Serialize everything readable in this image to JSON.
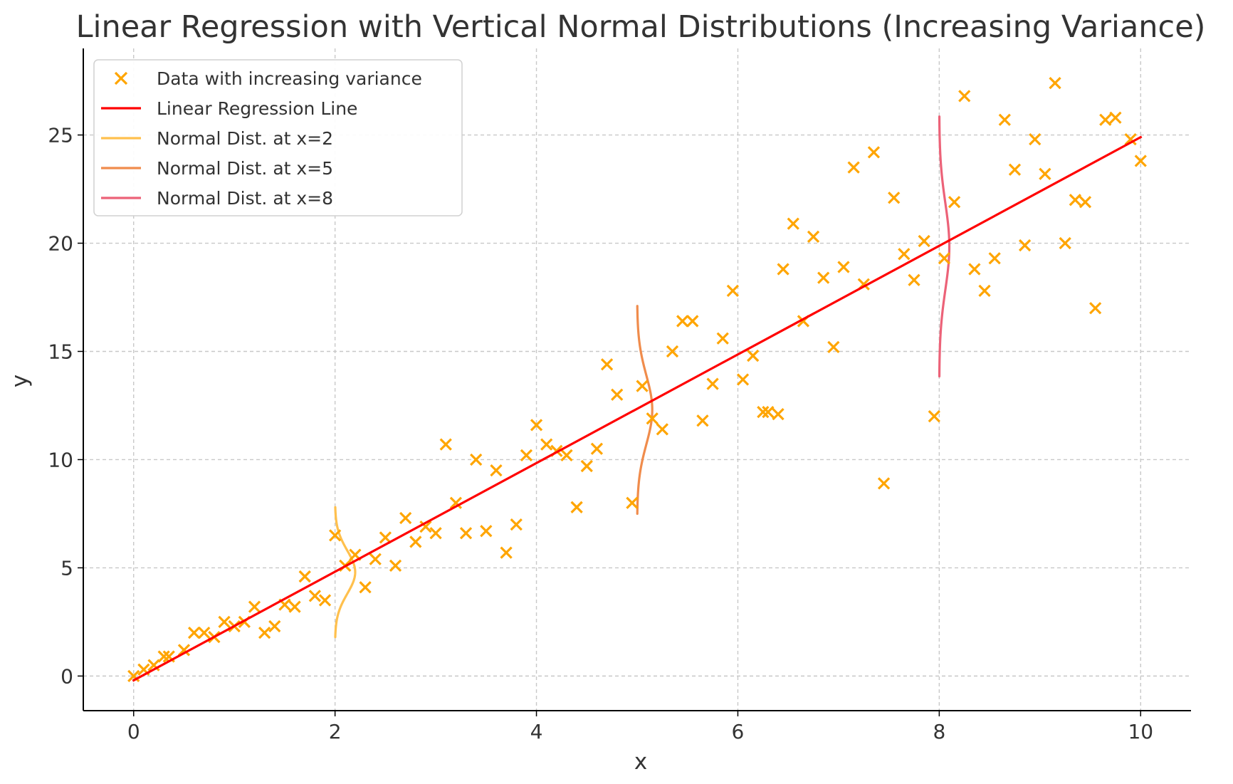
{
  "chart_data": {
    "type": "scatter",
    "title": "Linear Regression with Vertical Normal Distributions (Increasing Variance)",
    "xlabel": "x",
    "ylabel": "y",
    "xlim": [
      -0.5,
      10.5
    ],
    "ylim": [
      -1.6,
      29.0
    ],
    "xticks": [
      0,
      2,
      4,
      6,
      8,
      10
    ],
    "xtick_labels": [
      "0",
      "2",
      "4",
      "6",
      "8",
      "10"
    ],
    "yticks": [
      0,
      5,
      10,
      15,
      20,
      25
    ],
    "ytick_labels": [
      "0",
      "5",
      "10",
      "15",
      "20",
      "25"
    ],
    "grid": true,
    "legend_position": "top-left",
    "colors": {
      "scatter": "#FFA500",
      "regression": "#FF0000",
      "normal_x2": "#FFC04D",
      "normal_x5": "#F08C4C",
      "normal_x8": "#EC6278",
      "axes": "#000000",
      "grid": "#C8C8C8",
      "text": "#333333"
    },
    "legend": [
      {
        "label": "Data with increasing variance",
        "kind": "marker",
        "color": "#FFA500"
      },
      {
        "label": "Linear Regression Line",
        "kind": "line",
        "color": "#FF0000"
      },
      {
        "label": "Normal Dist. at x=2",
        "kind": "line",
        "color": "#FFC04D"
      },
      {
        "label": "Normal Dist. at x=5",
        "kind": "line",
        "color": "#F08C4C"
      },
      {
        "label": "Normal Dist. at x=8",
        "kind": "line",
        "color": "#EC6278"
      }
    ],
    "series": [
      {
        "name": "Data with increasing variance",
        "type": "scatter",
        "marker": "x",
        "points": [
          {
            "x": 0.0,
            "y": 0.0
          },
          {
            "x": 0.1,
            "y": 0.3
          },
          {
            "x": 0.2,
            "y": 0.5
          },
          {
            "x": 0.3,
            "y": 0.9
          },
          {
            "x": 0.35,
            "y": 0.9
          },
          {
            "x": 0.5,
            "y": 1.2
          },
          {
            "x": 0.6,
            "y": 2.0
          },
          {
            "x": 0.7,
            "y": 2.0
          },
          {
            "x": 0.8,
            "y": 1.8
          },
          {
            "x": 0.9,
            "y": 2.5
          },
          {
            "x": 1.0,
            "y": 2.3
          },
          {
            "x": 1.1,
            "y": 2.5
          },
          {
            "x": 1.2,
            "y": 3.2
          },
          {
            "x": 1.3,
            "y": 2.0
          },
          {
            "x": 1.4,
            "y": 2.3
          },
          {
            "x": 1.5,
            "y": 3.3
          },
          {
            "x": 1.6,
            "y": 3.2
          },
          {
            "x": 1.7,
            "y": 4.6
          },
          {
            "x": 1.8,
            "y": 3.7
          },
          {
            "x": 1.9,
            "y": 3.5
          },
          {
            "x": 2.0,
            "y": 6.5
          },
          {
            "x": 2.1,
            "y": 5.1
          },
          {
            "x": 2.2,
            "y": 5.6
          },
          {
            "x": 2.3,
            "y": 4.1
          },
          {
            "x": 2.4,
            "y": 5.4
          },
          {
            "x": 2.5,
            "y": 6.4
          },
          {
            "x": 2.6,
            "y": 5.1
          },
          {
            "x": 2.7,
            "y": 7.3
          },
          {
            "x": 2.8,
            "y": 6.2
          },
          {
            "x": 2.9,
            "y": 6.9
          },
          {
            "x": 3.0,
            "y": 6.6
          },
          {
            "x": 3.1,
            "y": 10.7
          },
          {
            "x": 3.2,
            "y": 8.0
          },
          {
            "x": 3.3,
            "y": 6.6
          },
          {
            "x": 3.4,
            "y": 10.0
          },
          {
            "x": 3.5,
            "y": 6.7
          },
          {
            "x": 3.6,
            "y": 9.5
          },
          {
            "x": 3.7,
            "y": 5.7
          },
          {
            "x": 3.8,
            "y": 7.0
          },
          {
            "x": 3.9,
            "y": 10.2
          },
          {
            "x": 4.0,
            "y": 11.6
          },
          {
            "x": 4.1,
            "y": 10.7
          },
          {
            "x": 4.2,
            "y": 10.4
          },
          {
            "x": 4.3,
            "y": 10.2
          },
          {
            "x": 4.4,
            "y": 7.8
          },
          {
            "x": 4.5,
            "y": 9.7
          },
          {
            "x": 4.6,
            "y": 10.5
          },
          {
            "x": 4.7,
            "y": 14.4
          },
          {
            "x": 4.8,
            "y": 13.0
          },
          {
            "x": 4.95,
            "y": 8.0
          },
          {
            "x": 5.05,
            "y": 13.4
          },
          {
            "x": 5.15,
            "y": 11.9
          },
          {
            "x": 5.25,
            "y": 11.4
          },
          {
            "x": 5.35,
            "y": 15.0
          },
          {
            "x": 5.45,
            "y": 16.4
          },
          {
            "x": 5.55,
            "y": 16.4
          },
          {
            "x": 5.65,
            "y": 11.8
          },
          {
            "x": 5.75,
            "y": 13.5
          },
          {
            "x": 5.85,
            "y": 15.6
          },
          {
            "x": 5.95,
            "y": 17.8
          },
          {
            "x": 6.05,
            "y": 13.7
          },
          {
            "x": 6.15,
            "y": 14.8
          },
          {
            "x": 6.25,
            "y": 12.2
          },
          {
            "x": 6.3,
            "y": 12.2
          },
          {
            "x": 6.4,
            "y": 12.1
          },
          {
            "x": 6.45,
            "y": 18.8
          },
          {
            "x": 6.55,
            "y": 20.9
          },
          {
            "x": 6.65,
            "y": 16.4
          },
          {
            "x": 6.75,
            "y": 20.3
          },
          {
            "x": 6.85,
            "y": 18.4
          },
          {
            "x": 6.95,
            "y": 15.2
          },
          {
            "x": 7.05,
            "y": 18.9
          },
          {
            "x": 7.15,
            "y": 23.5
          },
          {
            "x": 7.25,
            "y": 18.1
          },
          {
            "x": 7.35,
            "y": 24.2
          },
          {
            "x": 7.45,
            "y": 8.9
          },
          {
            "x": 7.55,
            "y": 22.1
          },
          {
            "x": 7.65,
            "y": 19.5
          },
          {
            "x": 7.75,
            "y": 18.3
          },
          {
            "x": 7.85,
            "y": 20.1
          },
          {
            "x": 7.95,
            "y": 12.0
          },
          {
            "x": 8.05,
            "y": 19.3
          },
          {
            "x": 8.15,
            "y": 21.9
          },
          {
            "x": 8.25,
            "y": 26.8
          },
          {
            "x": 8.35,
            "y": 18.8
          },
          {
            "x": 8.45,
            "y": 17.8
          },
          {
            "x": 8.55,
            "y": 19.3
          },
          {
            "x": 8.65,
            "y": 25.7
          },
          {
            "x": 8.75,
            "y": 23.4
          },
          {
            "x": 8.85,
            "y": 19.9
          },
          {
            "x": 8.95,
            "y": 24.8
          },
          {
            "x": 9.05,
            "y": 23.2
          },
          {
            "x": 9.15,
            "y": 27.4
          },
          {
            "x": 9.25,
            "y": 20.0
          },
          {
            "x": 9.35,
            "y": 22.0
          },
          {
            "x": 9.45,
            "y": 21.9
          },
          {
            "x": 9.55,
            "y": 17.0
          },
          {
            "x": 9.65,
            "y": 25.7
          },
          {
            "x": 9.75,
            "y": 25.8
          },
          {
            "x": 9.9,
            "y": 24.8
          },
          {
            "x": 10.0,
            "y": 23.8
          }
        ]
      },
      {
        "name": "Linear Regression Line",
        "type": "line",
        "points": [
          {
            "x": 0,
            "y": -0.2
          },
          {
            "x": 10,
            "y": 24.9
          }
        ]
      },
      {
        "name": "Normal Dist. at x=2",
        "type": "normal_curve",
        "x": 2,
        "mean": 4.8,
        "sd": 1.0,
        "half_range_sd": 3,
        "peak_x_offset": 0.2
      },
      {
        "name": "Normal Dist. at x=5",
        "type": "normal_curve",
        "x": 5,
        "mean": 12.3,
        "sd": 1.6,
        "half_range_sd": 3,
        "peak_x_offset": 0.15
      },
      {
        "name": "Normal Dist. at x=8",
        "type": "normal_curve",
        "x": 8,
        "mean": 19.85,
        "sd": 2.0,
        "half_range_sd": 3,
        "peak_x_offset": 0.1
      }
    ]
  }
}
